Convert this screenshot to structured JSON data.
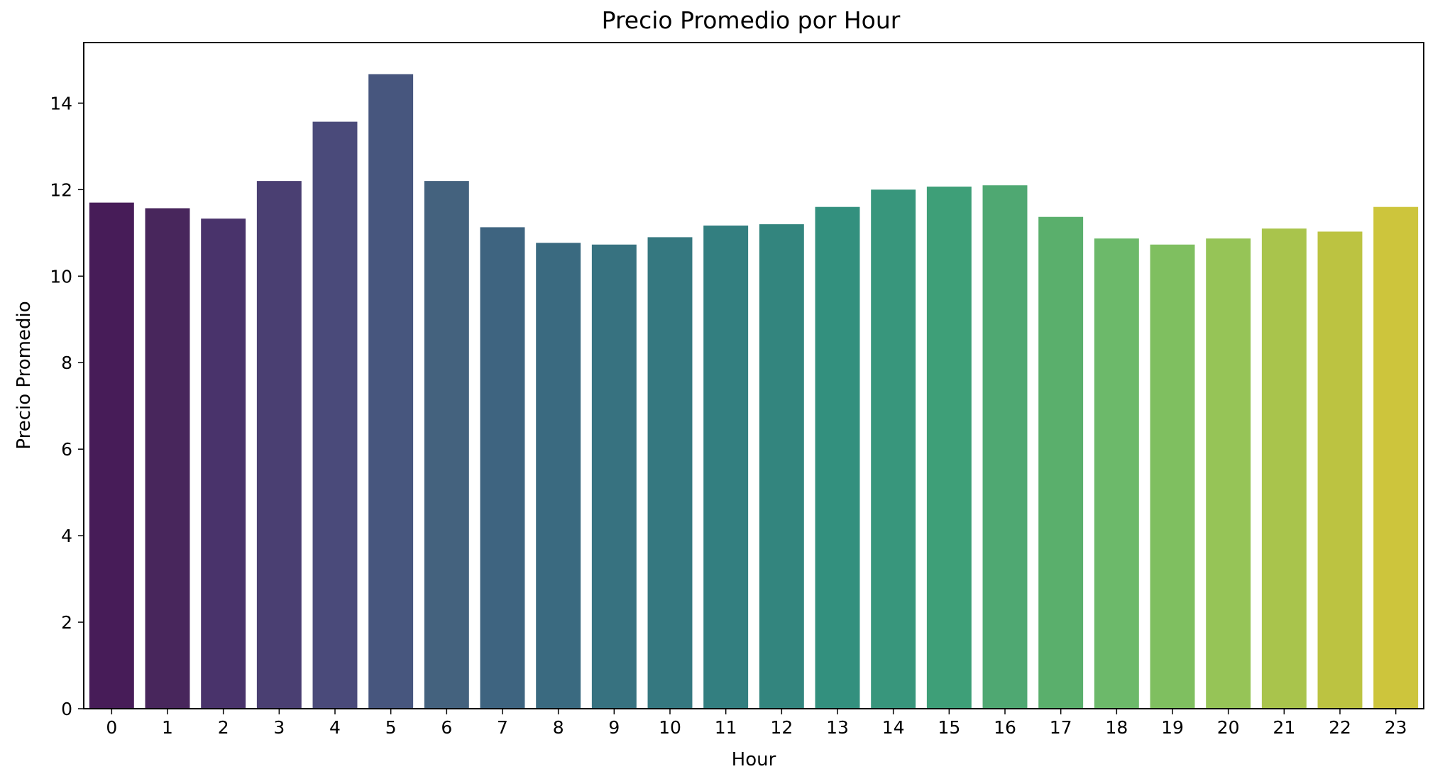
{
  "chart_data": {
    "type": "bar",
    "title": "Precio Promedio por Hour",
    "xlabel": "Hour",
    "ylabel": "Precio Promedio",
    "categories": [
      "0",
      "1",
      "2",
      "3",
      "4",
      "5",
      "6",
      "7",
      "8",
      "9",
      "10",
      "11",
      "12",
      "13",
      "14",
      "15",
      "16",
      "17",
      "18",
      "19",
      "20",
      "21",
      "22",
      "23"
    ],
    "values": [
      11.7,
      11.57,
      11.33,
      12.2,
      13.57,
      14.67,
      12.2,
      11.13,
      10.77,
      10.73,
      10.9,
      11.17,
      11.2,
      11.6,
      12.0,
      12.07,
      12.1,
      11.37,
      10.87,
      10.73,
      10.87,
      11.1,
      11.03,
      11.6
    ],
    "ylim": [
      0,
      15.4
    ],
    "yticks": [
      0,
      2,
      4,
      6,
      8,
      10,
      12,
      14
    ],
    "grid": false,
    "legend": "none",
    "colors": [
      "#471c58",
      "#48265c",
      "#49336b",
      "#4a3f72",
      "#4a4a7a",
      "#47567e",
      "#44627e",
      "#3e6480",
      "#3a6a80",
      "#377280",
      "#357880",
      "#337f80",
      "#33857e",
      "#33907e",
      "#38967c",
      "#3e9f78",
      "#4fa872",
      "#5aaf6c",
      "#6cb96a",
      "#7fbf60",
      "#96c457",
      "#a9c44c",
      "#bcc341",
      "#cdc53c"
    ]
  }
}
